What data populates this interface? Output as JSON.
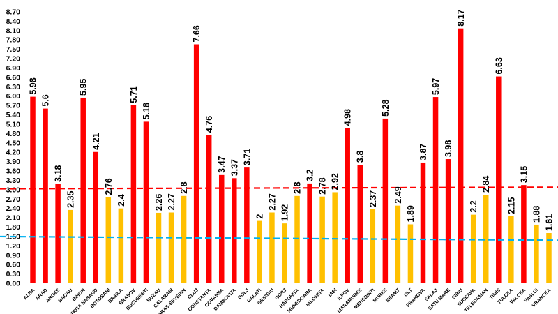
{
  "chart_data": {
    "type": "bar",
    "title": "",
    "xlabel": "",
    "ylabel": "",
    "ylim": [
      0,
      8.7
    ],
    "ytick_step": 0.3,
    "grid": false,
    "legend": "none",
    "categories": [
      "ALBA",
      "ARAD",
      "ARGES",
      "BACAU",
      "BIHOR",
      "BISTRITA NASAUD",
      "BOTOSANI",
      "BRAILA",
      "BRASOV",
      "BUCURESTI",
      "BUZAU",
      "CALARASI",
      "CARAS-SEVERIN",
      "CLUJ",
      "CONSTANTA",
      "COVASNA",
      "DAMBOVITA",
      "DOLJ",
      "GALATI",
      "GIURGIU",
      "GORJ",
      "HARGHITA",
      "HUNEDOARA",
      "IALOMITA",
      "IASI",
      "ILFOV",
      "MARAMURES",
      "MEHEDINTI",
      "MURES",
      "NEAMT",
      "OLT",
      "PRAHOVA",
      "SALAJ",
      "SATU MARE",
      "SIBIU",
      "SUCEAVA",
      "TELEORMAN",
      "TIMIS",
      "TULCEA",
      "VALCEA",
      "VASLUI",
      "VRANCEA"
    ],
    "values": [
      5.98,
      5.6,
      3.18,
      2.35,
      5.95,
      4.21,
      2.76,
      2.4,
      5.71,
      5.18,
      2.26,
      2.27,
      2.8,
      7.66,
      4.76,
      3.47,
      3.37,
      3.71,
      2,
      2.27,
      1.92,
      2.8,
      3.2,
      2.78,
      2.92,
      4.98,
      3.8,
      2.37,
      5.28,
      2.49,
      1.89,
      3.87,
      5.97,
      3.98,
      8.17,
      2.2,
      2.84,
      6.63,
      2.15,
      3.15,
      1.88,
      1.61
    ],
    "value_labels": [
      "5.98",
      "5.6",
      "3.18",
      "2.35",
      "5.95",
      "4.21",
      "2.76",
      "2.4",
      "5.71",
      "5.18",
      "2.26",
      "2.27",
      "2.8",
      "7.66",
      "4.76",
      "3.47",
      "3.37",
      "3.71",
      "2",
      "2.27",
      "1.92",
      "2.8",
      "3.2",
      "2.78",
      "2.92",
      "4.98",
      "3.8",
      "2.37",
      "5.28",
      "2.49",
      "1.89",
      "3.87",
      "5.97",
      "3.98",
      "8.17",
      "2.2",
      "2.84",
      "6.63",
      "2.15",
      "3.15",
      "1.88",
      "1.61"
    ],
    "bar_colors": [
      "#ff0000",
      "#ff0000",
      "#ff0000",
      "#ffc000",
      "#ff0000",
      "#ff0000",
      "#ffc000",
      "#ffc000",
      "#ff0000",
      "#ff0000",
      "#ffc000",
      "#ffc000",
      "#ffc000",
      "#ff0000",
      "#ff0000",
      "#ff0000",
      "#ff0000",
      "#ff0000",
      "#ffc000",
      "#ffc000",
      "#ffc000",
      "#ffc000",
      "#ff0000",
      "#ffc000",
      "#ffc000",
      "#ff0000",
      "#ff0000",
      "#ffc000",
      "#ff0000",
      "#ffc000",
      "#ffc000",
      "#ff0000",
      "#ff0000",
      "#ff0000",
      "#ff0000",
      "#ffc000",
      "#ffc000",
      "#ff0000",
      "#ffc000",
      "#ff0000",
      "#ffc000",
      "#ffc000"
    ],
    "reference_lines": [
      {
        "color": "#ff0000",
        "y_start": 3.03,
        "y_end": 3.08
      },
      {
        "color": "#00b0f0",
        "y_start": 1.5,
        "y_end": 1.38
      }
    ]
  }
}
